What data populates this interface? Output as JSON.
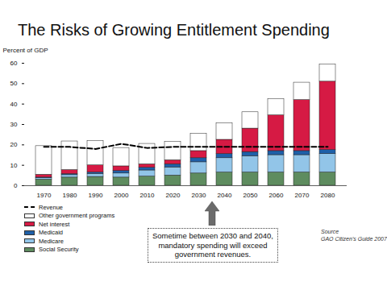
{
  "chart_data": {
    "type": "bar",
    "stacked": true,
    "title": "The Risks of Growing Entitlement Spending",
    "y_label": "Percent of GDP",
    "categories": [
      1970,
      1980,
      1990,
      2000,
      2010,
      2020,
      2030,
      2040,
      2050,
      2060,
      2070,
      2080
    ],
    "series": [
      {
        "name": "Social Security",
        "color": "#5e8c5f",
        "values": [
          3,
          4,
          4.3,
          4,
          4.5,
          5,
          6,
          6.5,
          6.5,
          6.5,
          6.5,
          6.5
        ]
      },
      {
        "name": "Medicare",
        "color": "#92c5e8",
        "values": [
          0.7,
          1.2,
          1.5,
          2,
          3,
          4,
          5.5,
          7,
          8,
          8.5,
          8.5,
          9
        ]
      },
      {
        "name": "Medicaid",
        "color": "#1f60a8",
        "values": [
          0.3,
          0.5,
          0.7,
          1.2,
          1.3,
          1.5,
          2,
          2,
          2,
          2,
          2,
          2
        ]
      },
      {
        "name": "Net interest",
        "color": "#d61a44",
        "values": [
          1.4,
          2,
          3.5,
          2.3,
          1.7,
          2,
          3.5,
          7,
          11.5,
          17.5,
          25,
          33.5
        ]
      },
      {
        "name": "Other government programs",
        "color": "#ffffff",
        "values": [
          14,
          14,
          12,
          9,
          10,
          9,
          8.5,
          8,
          8,
          8,
          8.5,
          8.5
        ]
      },
      {
        "name": "Revenue",
        "type": "line",
        "line_style": "dashed",
        "color": "#000000",
        "values": [
          19,
          19,
          18,
          20.5,
          18.5,
          19,
          19,
          19,
          19,
          19,
          19,
          19
        ]
      }
    ],
    "ylim": [
      0,
      60
    ],
    "yticks": [
      0,
      10,
      20,
      30,
      40,
      50,
      60
    ],
    "grid": false,
    "legend": "bottom-left",
    "annotation": [
      "Sometime between 2030 and 2040,",
      "mandatory spending will exceed",
      "government revenues."
    ],
    "source": [
      "Source",
      "GAO Citizen's Guide 2007"
    ]
  }
}
